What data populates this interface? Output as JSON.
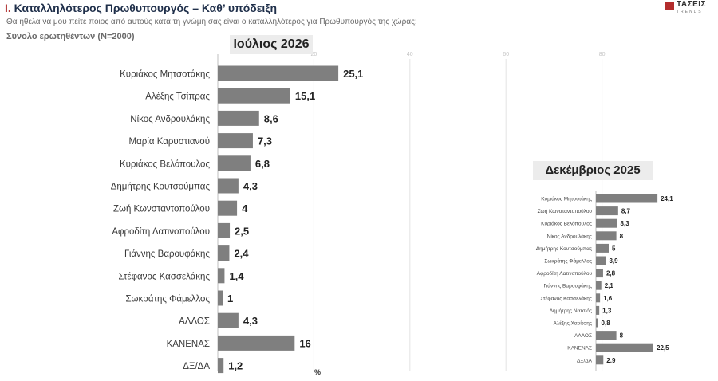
{
  "header": {
    "title_prefix": "I.",
    "title": "Καταλληλότερος  Πρωθυπουργός – Καθ’ υπόδειξη",
    "question": "Θα ήθελα να μου πείτε ποιος από αυτούς κατά τη γνώμη σας είναι ο καταλληλότερος για Πρωθυπουργός της χώρας;",
    "base": "Σύνολο ερωτηθέντων (Ν=2000)"
  },
  "logo": {
    "name": "ΤΑΣΕΙΣ",
    "subtitle": "TRENDS",
    "color": "#b32d2d"
  },
  "chart_data": [
    {
      "type": "bar",
      "orientation": "horizontal",
      "title": "Ιούλιος 2026",
      "categories": [
        "Κυριάκος Μητσοτάκης",
        "Αλέξης Τσίπρας",
        "Νίκος Ανδρουλάκης",
        "Μαρία Καρυστιανού",
        "Κυριάκος Βελόπουλος",
        "Δημήτρης Κουτσούμπας",
        "Ζωή Κωνσταντοπούλου",
        "Αφροδίτη Λατινοπούλου",
        "Γιάννης Βαρουφάκης",
        "Στέφανος Κασσελάκης",
        "Σωκράτης Φάμελλος",
        "ΑΛΛΟΣ",
        "ΚΑΝΕΝΑΣ",
        "ΔΞ/ΔΑ"
      ],
      "values": [
        25.1,
        15.1,
        8.6,
        7.3,
        6.8,
        4.3,
        4,
        2.5,
        2.4,
        1.4,
        1,
        4.3,
        16,
        1.2
      ],
      "value_labels": [
        "25,1",
        "15,1",
        "8,6",
        "7,3",
        "6,8",
        "4,3",
        "4",
        "2,5",
        "2,4",
        "1,4",
        "1",
        "4,3",
        "16",
        "1,2"
      ],
      "xlim": [
        0,
        100
      ],
      "xticks": [
        20,
        40,
        60,
        80
      ],
      "unit": "%",
      "grid": true,
      "bar_color": "#7f7f7f"
    },
    {
      "type": "bar",
      "orientation": "horizontal",
      "title": "Δεκέμβριος 2025",
      "categories": [
        "Κυριάκος Μητσοτάκης",
        "Ζωή Κωνσταντοπούλου",
        "Κυριάκος Βελόπουλος",
        "Νίκος Ανδρουλάκης",
        "Δημήτρης Κουτσούμπας",
        "Σωκράτης Φάμελλος",
        "Αφροδίτη Λατινοπούλου",
        "Γιάννης Βαρουφάκης",
        "Στέφανος Κασσελάκης",
        "Δημήτρης Νατσιός",
        "Αλέξης Χαρίτσης",
        "ΑΛΛΟΣ",
        "ΚΑΝΕΝΑΣ",
        "ΔΞ/ΔΑ"
      ],
      "values": [
        24.1,
        8.7,
        8.3,
        8,
        5,
        3.9,
        2.8,
        2.1,
        1.6,
        1.3,
        0.8,
        8,
        22.5,
        2.9
      ],
      "value_labels": [
        "24,1",
        "8,7",
        "8,3",
        "8",
        "5",
        "3,9",
        "2,8",
        "2,1",
        "1,6",
        "1,3",
        "0,8",
        "8",
        "22,5",
        "2.9"
      ],
      "bar_color": "#7f7f7f"
    }
  ]
}
